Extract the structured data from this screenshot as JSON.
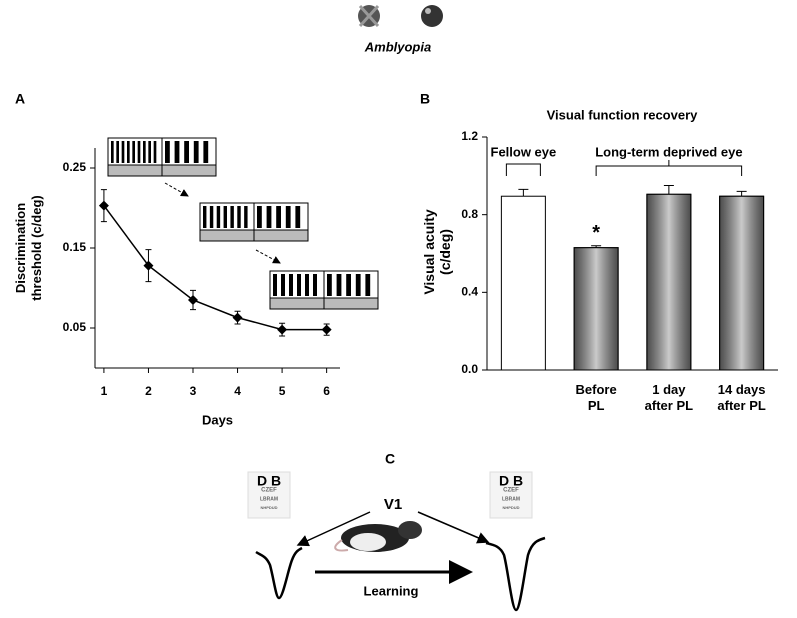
{
  "header": {
    "title": "Amblyopia"
  },
  "chart_data": [
    {
      "type": "line",
      "panel": "A",
      "xlabel": "Days",
      "ylabel": "Discrimination\nthreshold (c/deg)",
      "x": [
        1,
        2,
        3,
        4,
        5,
        6
      ],
      "values": [
        0.203,
        0.128,
        0.085,
        0.063,
        0.048,
        0.048
      ],
      "errors": [
        0.02,
        0.02,
        0.012,
        0.008,
        0.008,
        0.007
      ],
      "color": "#000000",
      "xlim": [
        0.8,
        6.3
      ],
      "xticks": [
        1,
        2,
        3,
        4,
        5,
        6
      ],
      "ylim": [
        0,
        0.275
      ],
      "yticks": [
        0.05,
        0.15,
        0.25
      ]
    },
    {
      "type": "bar",
      "panel": "B",
      "title": "Visual function recovery",
      "ylabel": "Visual acuity\n(c/deg)",
      "categories": [
        null,
        "Before\nPL",
        "1 day\nafter PL",
        "14 days\nafter PL"
      ],
      "values": [
        0.895,
        0.63,
        0.905,
        0.895
      ],
      "errors": [
        0.035,
        0.01,
        0.045,
        0.025
      ],
      "colors": [
        "#ffffff",
        "#8a8a8a",
        "#8a8a8a",
        "#8a8a8a"
      ],
      "annotations": [
        "*",
        "Fellow eye",
        "Long-term deprived eye"
      ],
      "ylim": [
        0,
        1.2
      ],
      "yticks": [
        {
          "value": 0,
          "label": "0.0"
        },
        0.4,
        0.8,
        1.2
      ]
    }
  ],
  "panel_c": {
    "label": "C",
    "area": "V1",
    "arrow": "Learning",
    "eye_chart": [
      "D B",
      "CZEF",
      "LBRAM",
      "NHPDUD"
    ]
  }
}
